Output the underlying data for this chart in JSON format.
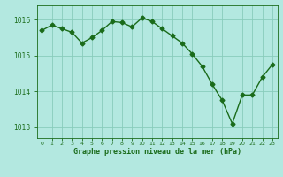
{
  "x": [
    0,
    1,
    2,
    3,
    4,
    5,
    6,
    7,
    8,
    9,
    10,
    11,
    12,
    13,
    14,
    15,
    16,
    17,
    18,
    19,
    20,
    21,
    22,
    23
  ],
  "y": [
    1015.7,
    1015.85,
    1015.75,
    1015.65,
    1015.35,
    1015.5,
    1015.7,
    1015.95,
    1015.92,
    1015.8,
    1016.05,
    1015.95,
    1015.75,
    1015.55,
    1015.35,
    1015.05,
    1014.7,
    1014.2,
    1013.75,
    1013.1,
    1013.9,
    1013.9,
    1014.4,
    1014.75
  ],
  "line_color": "#1a6b1a",
  "marker": "D",
  "marker_size": 2.5,
  "bg_color": "#b3e8e0",
  "grid_color": "#88ccbb",
  "xlabel": "Graphe pression niveau de la mer (hPa)",
  "tick_color": "#1a6b1a",
  "ylim": [
    1012.7,
    1016.4
  ],
  "yticks": [
    1013,
    1014,
    1015,
    1016
  ],
  "xlim": [
    -0.5,
    23.5
  ],
  "xticks": [
    0,
    1,
    2,
    3,
    4,
    5,
    6,
    7,
    8,
    9,
    10,
    11,
    12,
    13,
    14,
    15,
    16,
    17,
    18,
    19,
    20,
    21,
    22,
    23
  ]
}
